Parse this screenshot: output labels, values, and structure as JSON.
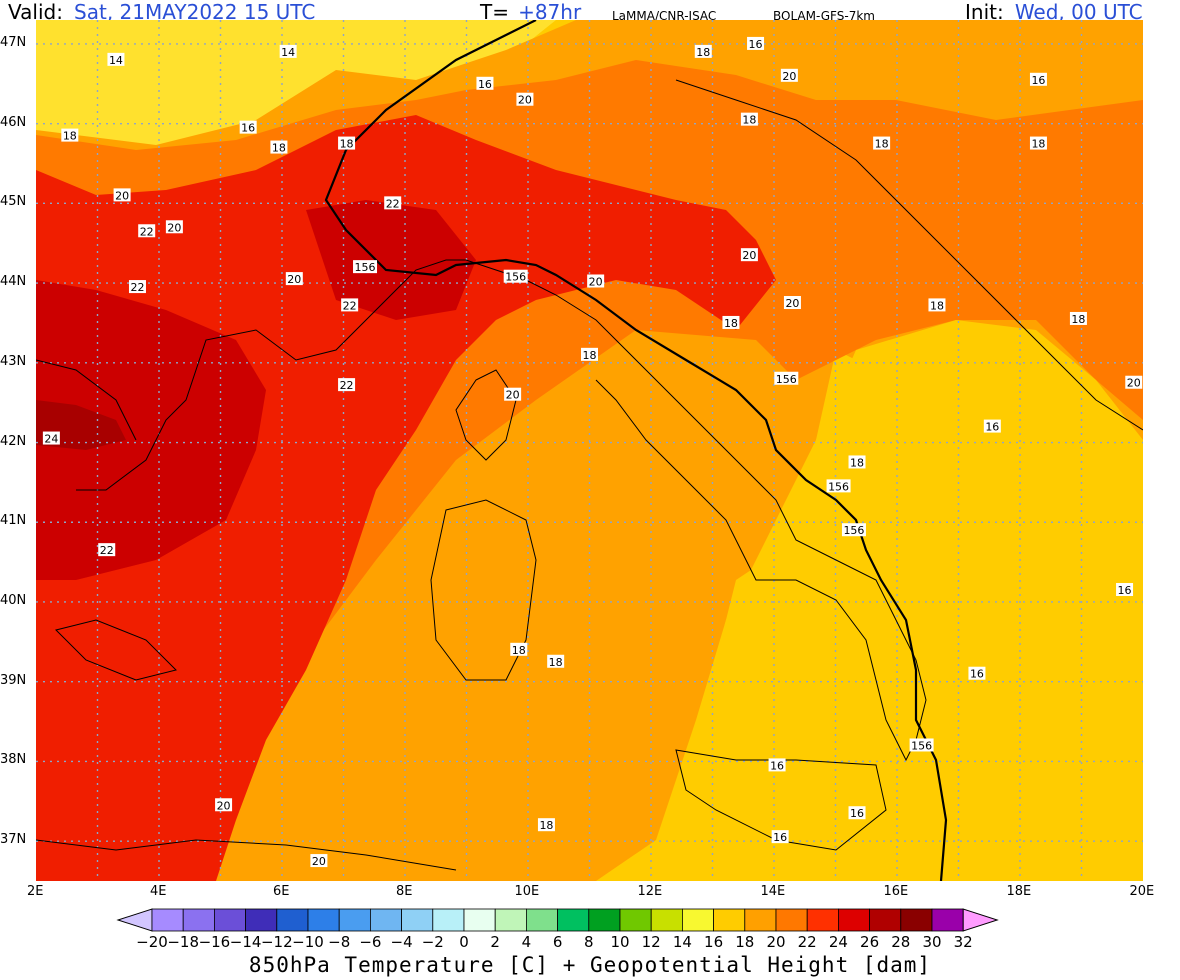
{
  "header": {
    "valid_label": "Valid:",
    "valid_value": "Sat, 21MAY2022   15 UTC",
    "t_label": "T=",
    "t_value": "+87hr",
    "org": "LaMMA/CNR-ISAC",
    "model": "BOLAM-GFS-7km",
    "init_label": "Init:",
    "init_value": "Wed, 00 UTC"
  },
  "axes": {
    "lat_labels": [
      "47N",
      "46N",
      "45N",
      "44N",
      "43N",
      "42N",
      "41N",
      "40N",
      "39N",
      "38N",
      "37N"
    ],
    "lon_labels": [
      "2E",
      "4E",
      "6E",
      "8E",
      "10E",
      "12E",
      "14E",
      "16E",
      "18E",
      "20E"
    ]
  },
  "contour_labels": [
    {
      "text": "14",
      "lon": 3.3,
      "lat": 46.8
    },
    {
      "text": "14",
      "lon": 6.1,
      "lat": 46.9
    },
    {
      "text": "16",
      "lon": 9.3,
      "lat": 46.5
    },
    {
      "text": "20",
      "lon": 9.95,
      "lat": 46.3
    },
    {
      "text": "18",
      "lon": 12.85,
      "lat": 46.9
    },
    {
      "text": "16",
      "lon": 13.7,
      "lat": 47.0
    },
    {
      "text": "20",
      "lon": 14.25,
      "lat": 46.6
    },
    {
      "text": "16",
      "lon": 18.3,
      "lat": 46.55
    },
    {
      "text": "18",
      "lon": 2.55,
      "lat": 45.85
    },
    {
      "text": "16",
      "lon": 5.45,
      "lat": 45.95
    },
    {
      "text": "18",
      "lon": 5.95,
      "lat": 45.7
    },
    {
      "text": "18",
      "lon": 7.05,
      "lat": 45.75
    },
    {
      "text": "18",
      "lon": 13.6,
      "lat": 46.05
    },
    {
      "text": "18",
      "lon": 15.75,
      "lat": 45.75
    },
    {
      "text": "18",
      "lon": 18.3,
      "lat": 45.75
    },
    {
      "text": "20",
      "lon": 3.4,
      "lat": 45.1
    },
    {
      "text": "22",
      "lon": 7.8,
      "lat": 45.0
    },
    {
      "text": "22",
      "lon": 3.8,
      "lat": 44.65
    },
    {
      "text": "20",
      "lon": 4.25,
      "lat": 44.7
    },
    {
      "text": "156",
      "lon": 7.35,
      "lat": 44.2
    },
    {
      "text": "156",
      "lon": 9.8,
      "lat": 44.08
    },
    {
      "text": "20",
      "lon": 6.2,
      "lat": 44.05
    },
    {
      "text": "22",
      "lon": 3.65,
      "lat": 43.95
    },
    {
      "text": "20",
      "lon": 11.1,
      "lat": 44.02
    },
    {
      "text": "20",
      "lon": 13.6,
      "lat": 44.35
    },
    {
      "text": "20",
      "lon": 14.3,
      "lat": 43.75
    },
    {
      "text": "18",
      "lon": 13.3,
      "lat": 43.5
    },
    {
      "text": "22",
      "lon": 7.1,
      "lat": 43.72
    },
    {
      "text": "18",
      "lon": 16.65,
      "lat": 43.72
    },
    {
      "text": "18",
      "lon": 18.95,
      "lat": 43.55
    },
    {
      "text": "18",
      "lon": 11.0,
      "lat": 43.1
    },
    {
      "text": "156",
      "lon": 14.2,
      "lat": 42.8
    },
    {
      "text": "22",
      "lon": 7.05,
      "lat": 42.72
    },
    {
      "text": "20",
      "lon": 9.75,
      "lat": 42.6
    },
    {
      "text": "20",
      "lon": 19.85,
      "lat": 42.75
    },
    {
      "text": "24",
      "lon": 2.25,
      "lat": 42.05
    },
    {
      "text": "16",
      "lon": 17.55,
      "lat": 42.2
    },
    {
      "text": "18",
      "lon": 15.35,
      "lat": 41.75
    },
    {
      "text": "156",
      "lon": 15.05,
      "lat": 41.45
    },
    {
      "text": "156",
      "lon": 15.3,
      "lat": 40.9
    },
    {
      "text": "22",
      "lon": 3.15,
      "lat": 40.65
    },
    {
      "text": "16",
      "lon": 19.7,
      "lat": 40.15
    },
    {
      "text": "18",
      "lon": 9.85,
      "lat": 39.4
    },
    {
      "text": "18",
      "lon": 10.45,
      "lat": 39.25
    },
    {
      "text": "16",
      "lon": 17.3,
      "lat": 39.1
    },
    {
      "text": "156",
      "lon": 16.4,
      "lat": 38.2
    },
    {
      "text": "16",
      "lon": 14.05,
      "lat": 37.95
    },
    {
      "text": "20",
      "lon": 5.05,
      "lat": 37.45
    },
    {
      "text": "16",
      "lon": 15.35,
      "lat": 37.35
    },
    {
      "text": "18",
      "lon": 10.3,
      "lat": 37.2
    },
    {
      "text": "16",
      "lon": 14.1,
      "lat": 37.05
    },
    {
      "text": "20",
      "lon": 6.6,
      "lat": 36.75
    }
  ],
  "colorbar": {
    "ticks": [
      "-20",
      "-18",
      "-16",
      "-14",
      "-12",
      "-10",
      "-8",
      "-6",
      "-4",
      "-2",
      "0",
      "2",
      "4",
      "6",
      "8",
      "10",
      "12",
      "14",
      "16",
      "18",
      "20",
      "22",
      "24",
      "26",
      "28",
      "30",
      "32"
    ],
    "colors": [
      "#a68bff",
      "#8b71f0",
      "#6b4fd8",
      "#3f2db8",
      "#1f5fd0",
      "#2d7fe8",
      "#4a9df0",
      "#6fb6f2",
      "#8fd0f5",
      "#b8f0f8",
      "#e8fff0",
      "#c0f5b8",
      "#7fe08c",
      "#00c060",
      "#00a020",
      "#70c800",
      "#c8e000",
      "#f8f830",
      "#ffcc00",
      "#ffa000",
      "#ff7800",
      "#ff3000",
      "#dd0000",
      "#b00000",
      "#8a0000",
      "#9a00aa",
      "#ff00ff"
    ],
    "low_arrow_color": "#d2c6ff",
    "high_arrow_color": "#ff9cff",
    "title": "850hPa Temperature [C] + Geopotential Height [dam]"
  },
  "map_colors": {
    "c14": "#ffe12e",
    "c16": "#ffcc00",
    "c18": "#ffa200",
    "c20": "#ff7a00",
    "c22": "#f01e00",
    "c24": "#cc0000",
    "c26": "#a80000",
    "sea_bg": "#ffcc00",
    "coast": "#000000",
    "grid": "#8ea5c8"
  }
}
